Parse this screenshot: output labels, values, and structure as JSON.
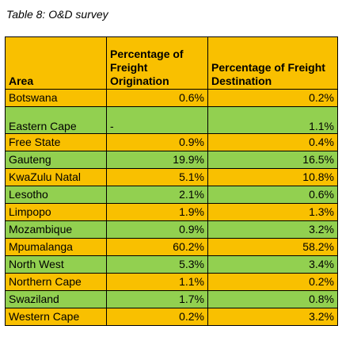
{
  "caption": "Table 8: O&D survey",
  "headers": {
    "area": "Area",
    "origination": "Percentage of Freight Origination",
    "destination": "Percentage of Freight Destination"
  },
  "colors": {
    "orange": "#f9c000",
    "green": "#92d050"
  },
  "rows": [
    {
      "area": "Botswana",
      "origination": "0.6%",
      "destination": "0.2%"
    },
    {
      "area": "Eastern Cape",
      "origination": "-",
      "destination": "1.1%"
    },
    {
      "area": "Free State",
      "origination": "0.9%",
      "destination": "0.4%"
    },
    {
      "area": "Gauteng",
      "origination": "19.9%",
      "destination": "16.5%"
    },
    {
      "area": "KwaZulu Natal",
      "origination": "5.1%",
      "destination": "10.8%"
    },
    {
      "area": "Lesotho",
      "origination": "2.1%",
      "destination": "0.6%"
    },
    {
      "area": "Limpopo",
      "origination": "1.9%",
      "destination": "1.3%"
    },
    {
      "area": "Mozambique",
      "origination": "0.9%",
      "destination": "3.2%"
    },
    {
      "area": "Mpumalanga",
      "origination": "60.2%",
      "destination": "58.2%"
    },
    {
      "area": "North West",
      "origination": "5.3%",
      "destination": "3.4%"
    },
    {
      "area": "Northern Cape",
      "origination": "1.1%",
      "destination": "0.2%"
    },
    {
      "area": "Swaziland",
      "origination": "1.7%",
      "destination": "0.8%"
    },
    {
      "area": "Western Cape",
      "origination": "0.2%",
      "destination": "3.2%"
    }
  ]
}
